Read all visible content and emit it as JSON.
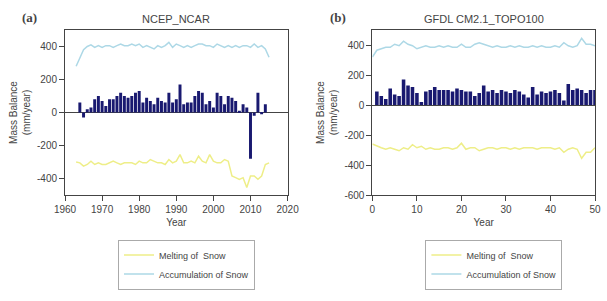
{
  "chart_data": [
    {
      "type": "bar",
      "title": "NCEP_NCAR",
      "annotations": [
        "(a)"
      ],
      "xlabel": "Year",
      "ylabel": "Mass Balance\n(mm/year)",
      "xlim": [
        1960,
        2020
      ],
      "ylim": [
        -500,
        500
      ],
      "xticks": [
        1960,
        1970,
        1980,
        1990,
        2000,
        2010,
        2020
      ],
      "yticks": [
        -400,
        -200,
        0,
        200,
        400
      ],
      "grid": false,
      "legend": "below",
      "series": [
        {
          "type": "bar",
          "color": "#191970",
          "x": [
            1964,
            1965,
            1966,
            1967,
            1968,
            1969,
            1970,
            1971,
            1972,
            1973,
            1974,
            1975,
            1976,
            1977,
            1978,
            1979,
            1980,
            1981,
            1982,
            1983,
            1984,
            1985,
            1986,
            1987,
            1988,
            1989,
            1990,
            1991,
            1992,
            1993,
            1994,
            1995,
            1996,
            1997,
            1998,
            1999,
            2000,
            2001,
            2002,
            2003,
            2004,
            2005,
            2006,
            2007,
            2008,
            2009,
            2010,
            2011,
            2012,
            2013,
            2014
          ],
          "values": [
            60,
            -30,
            20,
            30,
            80,
            100,
            70,
            40,
            80,
            80,
            100,
            120,
            100,
            90,
            100,
            120,
            130,
            60,
            90,
            70,
            50,
            90,
            70,
            60,
            120,
            60,
            80,
            170,
            50,
            60,
            60,
            100,
            130,
            120,
            50,
            70,
            30,
            120,
            100,
            50,
            100,
            90,
            70,
            10,
            50,
            30,
            -280,
            -20,
            120,
            -10,
            50
          ]
        },
        {
          "type": "line",
          "name": "Accumulation of Snow",
          "color": "#ADD8E6",
          "x": [
            1963,
            1964,
            1965,
            1966,
            1967,
            1968,
            1969,
            1970,
            1971,
            1972,
            1973,
            1974,
            1975,
            1976,
            1977,
            1978,
            1979,
            1980,
            1981,
            1982,
            1983,
            1984,
            1985,
            1986,
            1987,
            1988,
            1989,
            1990,
            1991,
            1992,
            1993,
            1994,
            1995,
            1996,
            1997,
            1998,
            1999,
            2000,
            2001,
            2002,
            2003,
            2004,
            2005,
            2006,
            2007,
            2008,
            2009,
            2010,
            2011,
            2012,
            2013,
            2014,
            2015
          ],
          "values": [
            280,
            330,
            380,
            400,
            410,
            395,
            405,
            395,
            405,
            405,
            395,
            405,
            415,
            405,
            405,
            415,
            405,
            415,
            395,
            405,
            395,
            385,
            405,
            395,
            405,
            425,
            395,
            415,
            405,
            395,
            405,
            395,
            405,
            415,
            415,
            405,
            405,
            395,
            415,
            405,
            395,
            405,
            395,
            405,
            395,
            405,
            405,
            395,
            415,
            395,
            405,
            385,
            335
          ]
        },
        {
          "type": "line",
          "name": "Melting of  Snow",
          "color": "#EEEE88",
          "x": [
            1963,
            1964,
            1965,
            1966,
            1967,
            1968,
            1969,
            1970,
            1971,
            1972,
            1973,
            1974,
            1975,
            1976,
            1977,
            1978,
            1979,
            1980,
            1981,
            1982,
            1983,
            1984,
            1985,
            1986,
            1987,
            1988,
            1989,
            1990,
            1991,
            1992,
            1993,
            1994,
            1995,
            1996,
            1997,
            1998,
            1999,
            2000,
            2001,
            2002,
            2003,
            2004,
            2005,
            2006,
            2007,
            2008,
            2009,
            2010,
            2011,
            2012,
            2013,
            2014,
            2015
          ],
          "values": [
            -300,
            -305,
            -325,
            -315,
            -295,
            -315,
            -305,
            -315,
            -315,
            -305,
            -295,
            -305,
            -315,
            -305,
            -305,
            -305,
            -315,
            -295,
            -305,
            -305,
            -285,
            -295,
            -305,
            -305,
            -315,
            -285,
            -305,
            -295,
            -255,
            -305,
            -305,
            -295,
            -305,
            -265,
            -295,
            -305,
            -255,
            -295,
            -305,
            -305,
            -285,
            -295,
            -385,
            -395,
            -405,
            -395,
            -455,
            -385,
            -385,
            -405,
            -385,
            -315,
            -305
          ]
        }
      ]
    },
    {
      "type": "bar",
      "title": "GFDL CM2.1_TOPO100",
      "annotations": [
        "(b)"
      ],
      "xlabel": "Year",
      "ylabel": "Mass Balance\n(mm/year)",
      "xlim": [
        0,
        50
      ],
      "ylim": [
        -600,
        500
      ],
      "xticks": [
        0,
        10,
        20,
        30,
        40,
        50
      ],
      "yticks": [
        -600,
        -400,
        -200,
        0,
        200,
        400
      ],
      "grid": false,
      "legend": "below",
      "series": [
        {
          "type": "bar",
          "color": "#191970",
          "x": [
            1,
            2,
            3,
            4,
            5,
            6,
            7,
            8,
            9,
            10,
            11,
            12,
            13,
            14,
            15,
            16,
            17,
            18,
            19,
            20,
            21,
            22,
            23,
            24,
            25,
            26,
            27,
            28,
            29,
            30,
            31,
            32,
            33,
            34,
            35,
            36,
            37,
            38,
            39,
            40,
            41,
            42,
            43,
            44,
            45,
            46,
            47,
            48,
            49,
            50
          ],
          "values": [
            90,
            60,
            40,
            110,
            70,
            60,
            170,
            130,
            120,
            80,
            20,
            90,
            100,
            120,
            100,
            100,
            100,
            90,
            110,
            100,
            90,
            90,
            60,
            80,
            130,
            90,
            100,
            80,
            100,
            90,
            80,
            100,
            90,
            70,
            50,
            120,
            70,
            90,
            80,
            90,
            100,
            80,
            30,
            140,
            100,
            110,
            100,
            80,
            100,
            100
          ]
        },
        {
          "type": "line",
          "name": "Accumulation of Snow",
          "color": "#ADD8E6",
          "x": [
            0,
            1,
            2,
            3,
            4,
            5,
            6,
            7,
            8,
            9,
            10,
            11,
            12,
            13,
            14,
            15,
            16,
            17,
            18,
            19,
            20,
            21,
            22,
            23,
            24,
            25,
            26,
            27,
            28,
            29,
            30,
            31,
            32,
            33,
            34,
            35,
            36,
            37,
            38,
            39,
            40,
            41,
            42,
            43,
            44,
            45,
            46,
            47,
            48,
            49,
            50
          ],
          "values": [
            320,
            365,
            375,
            385,
            385,
            405,
            395,
            425,
            405,
            395,
            375,
            385,
            395,
            385,
            385,
            395,
            385,
            395,
            385,
            385,
            405,
            385,
            385,
            405,
            415,
            405,
            395,
            385,
            395,
            385,
            385,
            395,
            385,
            395,
            385,
            385,
            395,
            385,
            395,
            385,
            385,
            395,
            385,
            415,
            395,
            385,
            395,
            445,
            405,
            405,
            395
          ]
        },
        {
          "type": "line",
          "name": "Melting of  Snow",
          "color": "#EEEE88",
          "x": [
            0,
            1,
            2,
            3,
            4,
            5,
            6,
            7,
            8,
            9,
            10,
            11,
            12,
            13,
            14,
            15,
            16,
            17,
            18,
            19,
            20,
            21,
            22,
            23,
            24,
            25,
            26,
            27,
            28,
            29,
            30,
            31,
            32,
            33,
            34,
            35,
            36,
            37,
            38,
            39,
            40,
            41,
            42,
            43,
            44,
            45,
            46,
            47,
            48,
            49,
            50
          ],
          "values": [
            -260,
            -275,
            -285,
            -295,
            -285,
            -295,
            -305,
            -285,
            -295,
            -265,
            -285,
            -275,
            -295,
            -285,
            -295,
            -295,
            -285,
            -285,
            -295,
            -285,
            -255,
            -295,
            -285,
            -285,
            -305,
            -295,
            -285,
            -285,
            -295,
            -285,
            -285,
            -295,
            -285,
            -295,
            -285,
            -285,
            -285,
            -295,
            -285,
            -285,
            -285,
            -295,
            -285,
            -315,
            -295,
            -285,
            -295,
            -355,
            -315,
            -315,
            -285
          ]
        }
      ]
    }
  ]
}
